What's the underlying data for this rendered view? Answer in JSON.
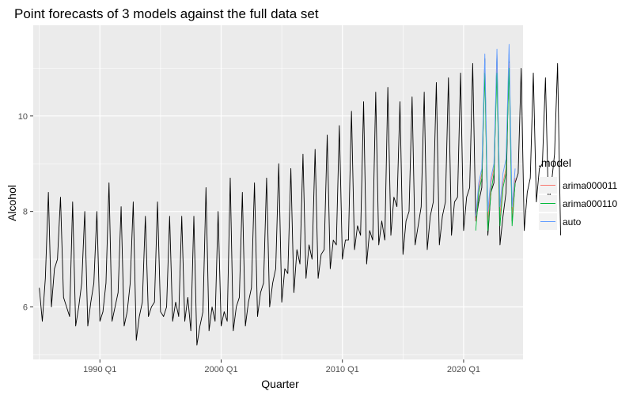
{
  "chart_data": {
    "type": "line",
    "title": "Point forecasts of 3 models against the full data set",
    "xlabel": "Quarter",
    "ylabel": "Alcohol",
    "xlim": [
      1984.5,
      2024.9
    ],
    "ylim": [
      4.9,
      11.9
    ],
    "x_ticks": [
      {
        "value": 1990,
        "label": "1990 Q1"
      },
      {
        "value": 2000,
        "label": "2000 Q1"
      },
      {
        "value": 2010,
        "label": "2010 Q1"
      },
      {
        "value": 2020,
        "label": "2020 Q1"
      }
    ],
    "y_ticks": [
      {
        "value": 6,
        "label": "6"
      },
      {
        "value": 8,
        "label": "8"
      },
      {
        "value": 10,
        "label": "10"
      }
    ],
    "grid": true,
    "legend": {
      "title": ".model",
      "position": "right",
      "entries": [
        {
          "name": "arima000011",
          "color": "#F8766D"
        },
        {
          "name": "arima000110",
          "color": "#00BA38"
        },
        {
          "name": "auto",
          "color": "#619CFF"
        }
      ]
    },
    "actual": {
      "color": "#000000",
      "start": 1985.0,
      "step": 0.25,
      "values": [
        6.4,
        5.7,
        6.6,
        8.4,
        6.0,
        6.8,
        7.0,
        8.3,
        6.2,
        6.0,
        5.8,
        8.2,
        5.6,
        6.0,
        6.5,
        8.0,
        5.6,
        6.1,
        6.5,
        8.0,
        5.7,
        5.9,
        6.5,
        8.6,
        5.7,
        6.0,
        6.3,
        8.1,
        5.6,
        5.9,
        6.5,
        8.2,
        5.3,
        5.8,
        6.1,
        7.9,
        5.8,
        6.0,
        6.1,
        8.2,
        5.9,
        5.8,
        6.0,
        7.9,
        5.7,
        6.1,
        5.8,
        7.9,
        5.7,
        6.2,
        5.5,
        7.9,
        5.2,
        5.6,
        5.9,
        8.5,
        5.5,
        6.0,
        5.7,
        8.0,
        5.6,
        5.9,
        5.7,
        8.7,
        5.5,
        6.0,
        6.2,
        8.4,
        5.6,
        6.1,
        6.4,
        8.6,
        5.8,
        6.3,
        6.5,
        8.7,
        6.0,
        6.5,
        6.8,
        9.0,
        6.1,
        6.8,
        6.7,
        8.9,
        6.3,
        7.2,
        6.9,
        9.2,
        6.6,
        7.3,
        7.0,
        9.3,
        6.6,
        7.1,
        7.2,
        9.6,
        6.8,
        7.4,
        7.3,
        9.8,
        7.0,
        7.4,
        7.4,
        10.1,
        7.2,
        7.7,
        7.5,
        10.3,
        6.9,
        7.6,
        7.4,
        10.5,
        7.3,
        7.8,
        7.4,
        10.6,
        7.5,
        8.3,
        8.1,
        10.3,
        7.1,
        7.8,
        8.0,
        10.4,
        7.3,
        7.7,
        8.1,
        10.5,
        7.2,
        7.9,
        8.2,
        10.7,
        7.3,
        7.9,
        8.2,
        10.8,
        7.5,
        8.2,
        8.3,
        10.9,
        7.6,
        8.3,
        8.5,
        11.1,
        7.8,
        8.2,
        8.5,
        11.2,
        7.5,
        8.4,
        8.6,
        11.3,
        7.3,
        7.9,
        8.4,
        11.3,
        7.8,
        8.6,
        8.8,
        11.0,
        7.6,
        8.4,
        8.7,
        10.9,
        8.2,
        8.9,
        9.0,
        10.8,
        8.1,
        8.6,
        9.2,
        11.1,
        7.5
      ]
    },
    "forecasts": {
      "start": 2021.0,
      "step": 0.25,
      "series": [
        {
          "name": "arima000011",
          "values": [
            7.8,
            8.5,
            8.8,
            11.0,
            7.8,
            8.6,
            8.9,
            11.1,
            7.9,
            8.6,
            8.9,
            11.1,
            7.9,
            8.7
          ]
        },
        {
          "name": "arima000110",
          "values": [
            7.6,
            8.4,
            8.7,
            10.9,
            7.6,
            8.4,
            8.8,
            10.9,
            7.7,
            8.5,
            8.8,
            11.0,
            7.7,
            8.6
          ]
        },
        {
          "name": "auto",
          "values": [
            7.9,
            8.6,
            8.9,
            11.3,
            8.0,
            8.7,
            9.0,
            11.4,
            8.1,
            8.8,
            9.1,
            11.5,
            8.1,
            8.9
          ]
        }
      ]
    }
  }
}
